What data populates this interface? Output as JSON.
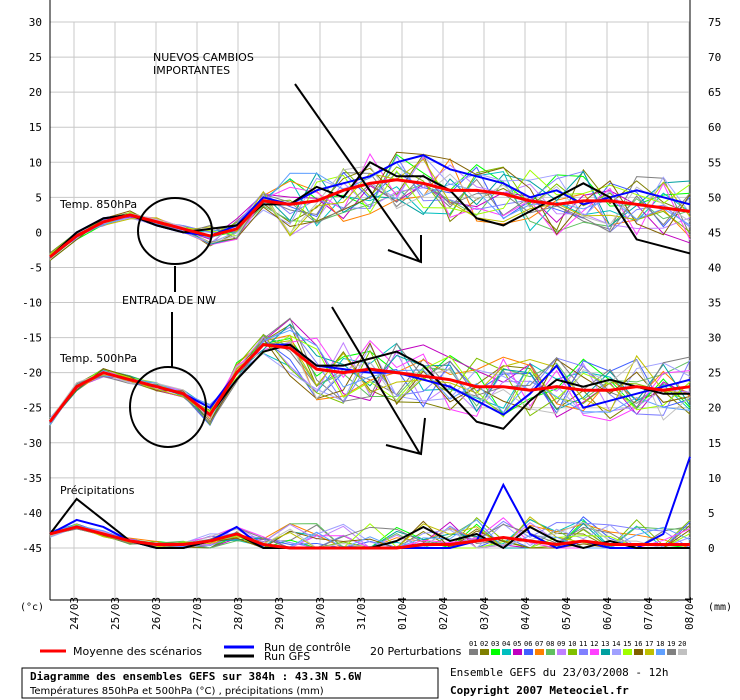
{
  "chart_data": {
    "type": "line",
    "left_axis": {
      "unit": "(°c)",
      "ticks": [
        30,
        25,
        20,
        15,
        10,
        5,
        0,
        -5,
        -10,
        -15,
        -20,
        -25,
        -30,
        -35,
        -40,
        -45
      ]
    },
    "right_axis": {
      "unit": "(mm)",
      "ticks": [
        75,
        70,
        65,
        60,
        55,
        50,
        45,
        40,
        35,
        30,
        25,
        20,
        15,
        10,
        5,
        0
      ]
    },
    "x_ticks": [
      "24/03",
      "25/03",
      "26/03",
      "27/03",
      "28/03",
      "29/03",
      "30/03",
      "31/03",
      "01/04",
      "02/04",
      "03/04",
      "04/04",
      "05/04",
      "06/04",
      "07/04",
      "08/04"
    ],
    "grid": true,
    "panel_labels": {
      "t850": "Temp. 850hPa",
      "t500": "Temp. 500hPa",
      "precip": "Précipitations"
    },
    "series": [
      {
        "name": "Moyenne des scénarios",
        "color": "#ff0000",
        "group": "t850",
        "values": [
          -3.5,
          -0.5,
          1.5,
          2.5,
          1.5,
          0.5,
          -0.5,
          0.5,
          4.5,
          4,
          4.5,
          6,
          7,
          7.5,
          7,
          6,
          6,
          5.5,
          4.5,
          4,
          4.5,
          4.5,
          4,
          3.5,
          3
        ]
      },
      {
        "name": "Run de contrôle",
        "color": "#0000ff",
        "group": "t850",
        "values": [
          -3.5,
          0,
          2,
          2.5,
          1,
          0,
          -0.5,
          1,
          5,
          4,
          6,
          7,
          8,
          10,
          11,
          9,
          8,
          7,
          5,
          6,
          4,
          5,
          6,
          5,
          4
        ]
      },
      {
        "name": "Run GFS",
        "color": "#000000",
        "group": "t850",
        "values": [
          -3.5,
          0,
          2,
          2.5,
          1,
          0,
          0.5,
          1,
          4,
          4,
          6.5,
          5,
          10,
          8,
          8,
          6,
          2,
          1,
          3,
          5,
          7,
          5,
          -1,
          -2,
          -3
        ]
      },
      {
        "name": "Moyenne des scénarios",
        "color": "#ff0000",
        "group": "t500",
        "values": [
          -27,
          -22,
          -20,
          -21,
          -22,
          -23,
          -26,
          -20,
          -16,
          -16.5,
          -19.5,
          -20,
          -19.5,
          -20,
          -20.5,
          -21,
          -22,
          -22,
          -22.5,
          -22,
          -22.5,
          -22.5,
          -22,
          -22.5,
          -22
        ]
      },
      {
        "name": "Run de contrôle",
        "color": "#0000ff",
        "group": "t500",
        "values": [
          -27,
          -22,
          -20,
          -21,
          -22,
          -23,
          -25,
          -20,
          -16,
          -16,
          -19,
          -19.5,
          -20,
          -20,
          -21,
          -22,
          -24,
          -26,
          -23,
          -19,
          -25,
          -24,
          -23,
          -22,
          -21
        ]
      },
      {
        "name": "Run GFS",
        "color": "#000000",
        "group": "t500",
        "values": [
          -27,
          -22,
          -20,
          -21,
          -22,
          -23,
          -26,
          -21,
          -17,
          -16,
          -19,
          -19,
          -18,
          -17,
          -19,
          -23,
          -27,
          -28,
          -24,
          -21,
          -22,
          -21,
          -22,
          -23,
          -23
        ]
      },
      {
        "name": "Moyenne des scénarios",
        "color": "#ff0000",
        "group": "precip",
        "values": [
          2,
          3,
          2,
          1,
          0.5,
          0.5,
          1,
          2,
          0.5,
          0,
          0,
          0,
          0,
          0,
          0.5,
          0.5,
          1,
          1.5,
          1,
          0.5,
          1,
          0.5,
          0.5,
          0.5,
          0.5
        ]
      },
      {
        "name": "Run de contrôle",
        "color": "#0000ff",
        "group": "precip",
        "values": [
          2,
          4,
          3,
          1,
          0,
          0,
          1,
          3,
          0,
          0,
          0,
          0,
          0,
          0,
          0,
          0,
          1,
          9,
          2,
          0,
          1,
          0,
          0,
          2,
          13
        ]
      },
      {
        "name": "Run GFS",
        "color": "#000000",
        "group": "precip",
        "values": [
          2,
          7,
          4,
          1,
          0,
          0,
          1,
          2,
          0,
          0,
          0,
          0,
          0,
          1,
          3,
          1,
          2,
          0,
          3,
          1,
          0,
          1,
          0,
          0,
          0
        ]
      }
    ],
    "perturbation_colors": [
      "#7f7f7f",
      "#7f7f00",
      "#00ff00",
      "#00bfbf",
      "#c000c0",
      "#4060ff",
      "#ff8000",
      "#60c060",
      "#c080ff",
      "#80c000",
      "#8080ff",
      "#ff40ff",
      "#00a0a0",
      "#a0a0ff",
      "#a0ff00",
      "#806000",
      "#c0c000",
      "#60a0ff",
      "#808080",
      "#c0c0c0"
    ]
  },
  "annotations": {
    "nuevos_line1": "NUEVOS CAMBIOS",
    "nuevos_line2": "IMPORTANTES",
    "entrada": "ENTRADA DE NW"
  },
  "legend": {
    "mean": "Moyenne des scénarios",
    "control": "Run de contrôle",
    "gfs": "Run GFS",
    "perturbations": "20 Perturbations",
    "perturbation_numbers": [
      "01",
      "02",
      "03",
      "04",
      "05",
      "06",
      "07",
      "08",
      "09",
      "10",
      "11",
      "12",
      "13",
      "14",
      "15",
      "16",
      "17",
      "18",
      "19",
      "20"
    ]
  },
  "footer": {
    "title": "Diagramme des ensembles GEFS sur 384h : 43.3N 5.6W",
    "subtitle": "Températures 850hPa et 500hPa (°C) , précipitations (mm)",
    "run": "Ensemble GEFS du 23/03/2008 - 12h",
    "copyright": "Copyright 2007 Meteociel.fr"
  }
}
